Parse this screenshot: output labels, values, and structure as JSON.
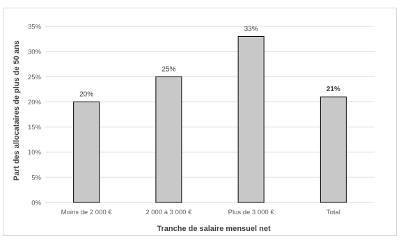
{
  "chart_data": {
    "type": "bar",
    "title": "",
    "xlabel": "Tranche de salaire mensuel net",
    "ylabel": "Part des allocataires de plus de 50 ans",
    "categories": [
      "Moins de 2 000 €",
      "2 000 à 3 000 €",
      "Plus de 3 000 €",
      "Total"
    ],
    "values": [
      20,
      25,
      33,
      21
    ],
    "data_labels": [
      "20%",
      "25%",
      "33%",
      "21%"
    ],
    "bold_labels": [
      false,
      false,
      false,
      true
    ],
    "ylim": [
      0,
      35
    ],
    "yticks": [
      0,
      5,
      10,
      15,
      20,
      25,
      30,
      35
    ],
    "ytick_labels": [
      "0%",
      "5%",
      "10%",
      "15%",
      "20%",
      "25%",
      "30%",
      "35%"
    ],
    "grid": true,
    "legend": "none",
    "colors": {
      "bar_fill": "#c8c8c8",
      "bar_stroke": "#000000",
      "grid": "#d9d9d9",
      "text": "#595959"
    }
  }
}
